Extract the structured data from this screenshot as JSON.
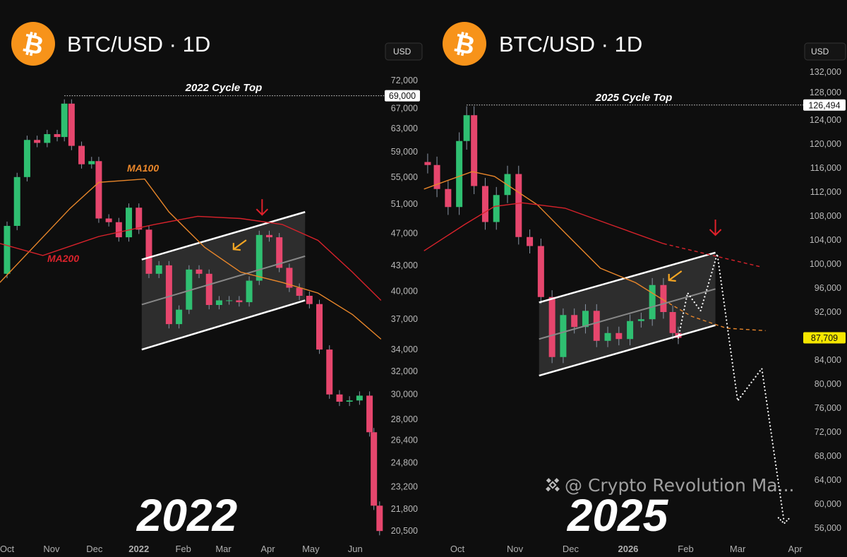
{
  "colors": {
    "background": "#0e0e0e",
    "up": "#2fbf71",
    "down": "#e6466d",
    "ma100": "#e8862a",
    "ma200": "#d8222b",
    "btc": "#f7931a",
    "arrow_red": "#e0202a",
    "arrow_orange": "#f5a623",
    "current_price_bg": "#f5e600"
  },
  "watermark": "@ Crypto Revolution Ma...",
  "chart_data": [
    {
      "type": "candlestick",
      "title": "BTC/USD · 1D",
      "icon": "bitcoin-icon",
      "currency_label": "USD",
      "year_label": "2022",
      "cycle_top_label": "2022 Cycle Top",
      "cycle_top_value": "69,000",
      "cycle_top_date": "2021-11-10",
      "y_scale": "log",
      "ylim": [
        20500,
        72000
      ],
      "y_ticks": [
        "72,000",
        "67,000",
        "63,000",
        "59,000",
        "55,000",
        "51,000",
        "47,000",
        "43,000",
        "40,000",
        "37,000",
        "34,000",
        "32,000",
        "30,000",
        "28,000",
        "26,400",
        "24,800",
        "23,200",
        "21,800",
        "20,500"
      ],
      "x_ticks": [
        {
          "date": "2021-10-01",
          "label": "Oct"
        },
        {
          "date": "2021-11-01",
          "label": "Nov"
        },
        {
          "date": "2021-12-01",
          "label": "Dec"
        },
        {
          "date": "2022-01-01",
          "label": "2022"
        },
        {
          "date": "2022-02-01",
          "label": "Feb"
        },
        {
          "date": "2022-03-01",
          "label": "Mar"
        },
        {
          "date": "2022-04-01",
          "label": "Apr"
        },
        {
          "date": "2022-05-01",
          "label": "May"
        },
        {
          "date": "2022-06-01",
          "label": "Jun"
        }
      ],
      "start_open": 42000,
      "closes": [
        [
          "2021-10-01",
          48000
        ],
        [
          "2021-10-08",
          55000
        ],
        [
          "2021-10-15",
          61000
        ],
        [
          "2021-10-22",
          60500
        ],
        [
          "2021-10-29",
          62000
        ],
        [
          "2021-11-05",
          61500
        ],
        [
          "2021-11-10",
          67500
        ],
        [
          "2021-11-15",
          60000
        ],
        [
          "2021-11-22",
          57000
        ],
        [
          "2021-11-29",
          57500
        ],
        [
          "2021-12-04",
          49000
        ],
        [
          "2021-12-11",
          48500
        ],
        [
          "2021-12-18",
          46500
        ],
        [
          "2021-12-25",
          50500
        ],
        [
          "2022-01-01",
          47500
        ],
        [
          "2022-01-08",
          42000
        ],
        [
          "2022-01-15",
          43000
        ],
        [
          "2022-01-22",
          36500
        ],
        [
          "2022-01-29",
          38000
        ],
        [
          "2022-02-05",
          42500
        ],
        [
          "2022-02-12",
          42000
        ],
        [
          "2022-02-19",
          38500
        ],
        [
          "2022-02-26",
          39000
        ],
        [
          "2022-03-05",
          39000
        ],
        [
          "2022-03-12",
          38800
        ],
        [
          "2022-03-19",
          41200
        ],
        [
          "2022-03-26",
          46800
        ],
        [
          "2022-04-02",
          46500
        ],
        [
          "2022-04-09",
          42700
        ],
        [
          "2022-04-16",
          40400
        ],
        [
          "2022-04-23",
          39500
        ],
        [
          "2022-04-30",
          38600
        ],
        [
          "2022-05-07",
          34000
        ],
        [
          "2022-05-14",
          30000
        ],
        [
          "2022-05-21",
          29400
        ],
        [
          "2022-05-28",
          29500
        ],
        [
          "2022-06-04",
          29900
        ],
        [
          "2022-06-11",
          27000
        ],
        [
          "2022-06-14",
          22000
        ],
        [
          "2022-06-18",
          20500
        ]
      ],
      "ma100": {
        "label": "MA100",
        "points": [
          [
            "2021-09-26",
            41000
          ],
          [
            "2021-11-14",
            50400
          ],
          [
            "2021-12-04",
            54200
          ],
          [
            "2022-01-05",
            54700
          ],
          [
            "2022-01-22",
            49900
          ],
          [
            "2022-02-16",
            45200
          ],
          [
            "2022-03-13",
            42200
          ],
          [
            "2022-04-11",
            41000
          ],
          [
            "2022-05-06",
            39800
          ],
          [
            "2022-05-30",
            37500
          ],
          [
            "2022-06-19",
            35000
          ]
        ]
      },
      "ma200": {
        "label": "MA200",
        "points": [
          [
            "2021-09-26",
            45700
          ],
          [
            "2021-10-26",
            44200
          ],
          [
            "2021-12-04",
            46600
          ],
          [
            "2022-01-12",
            48200
          ],
          [
            "2022-02-11",
            49300
          ],
          [
            "2022-03-13",
            49000
          ],
          [
            "2022-04-11",
            48200
          ],
          [
            "2022-05-06",
            46100
          ],
          [
            "2022-05-30",
            42200
          ],
          [
            "2022-06-19",
            39000
          ]
        ]
      },
      "channel": {
        "upper": [
          [
            "2022-01-03",
            43700
          ],
          [
            "2022-04-27",
            49900
          ]
        ],
        "lower": [
          [
            "2022-01-03",
            34000
          ],
          [
            "2022-04-27",
            39000
          ]
        ]
      },
      "annotations": [
        {
          "type": "red-down-arrow",
          "date": "2022-03-28",
          "price": 50500
        },
        {
          "type": "orange-left-arrow",
          "date": "2022-03-12",
          "price": 45500
        }
      ]
    },
    {
      "type": "candlestick",
      "title": "BTC/USD · 1D",
      "icon": "bitcoin-icon",
      "currency_label": "USD",
      "year_label": "2025",
      "cycle_top_label": "2025 Cycle Top",
      "cycle_top_value": "126,494",
      "cycle_top_date": "2025-10-06",
      "current_price": "87,709",
      "y_scale": "linear",
      "ylim": [
        56000,
        132000
      ],
      "y_ticks": [
        "132,000",
        "128,000",
        "124,000",
        "120,000",
        "116,000",
        "112,000",
        "108,000",
        "104,000",
        "100,000",
        "96,000",
        "92,000",
        "84,000",
        "80,000",
        "76,000",
        "72,000",
        "68,000",
        "64,000",
        "60,000",
        "56,000"
      ],
      "x_ticks": [
        {
          "date": "2025-10-01",
          "label": "Oct"
        },
        {
          "date": "2025-11-01",
          "label": "Nov"
        },
        {
          "date": "2025-12-01",
          "label": "Dec"
        },
        {
          "date": "2026-01-01",
          "label": "2026"
        },
        {
          "date": "2026-02-01",
          "label": "Feb"
        },
        {
          "date": "2026-03-01",
          "label": "Mar"
        },
        {
          "date": "2026-04-01",
          "label": "Apr"
        }
      ],
      "start_open": 117000,
      "closes": [
        [
          "2025-09-15",
          116500
        ],
        [
          "2025-09-20",
          112500
        ],
        [
          "2025-09-26",
          109500
        ],
        [
          "2025-10-02",
          120500
        ],
        [
          "2025-10-06",
          124800
        ],
        [
          "2025-10-10",
          113000
        ],
        [
          "2025-10-16",
          107000
        ],
        [
          "2025-10-22",
          111500
        ],
        [
          "2025-10-28",
          115000
        ],
        [
          "2025-11-03",
          104500
        ],
        [
          "2025-11-09",
          103000
        ],
        [
          "2025-11-15",
          94500
        ],
        [
          "2025-11-21",
          84500
        ],
        [
          "2025-11-27",
          91500
        ],
        [
          "2025-12-03",
          89500
        ],
        [
          "2025-12-09",
          92200
        ],
        [
          "2025-12-15",
          87200
        ],
        [
          "2025-12-21",
          88500
        ],
        [
          "2025-12-27",
          87500
        ],
        [
          "2026-01-02",
          90500
        ],
        [
          "2026-01-08",
          90800
        ],
        [
          "2026-01-14",
          96500
        ],
        [
          "2026-01-20",
          92000
        ],
        [
          "2026-01-25",
          88500
        ],
        [
          "2026-01-28",
          87709
        ]
      ],
      "ma100": {
        "points": [
          [
            "2025-09-13",
            112500
          ],
          [
            "2025-10-09",
            115400
          ],
          [
            "2025-10-21",
            114600
          ],
          [
            "2025-11-13",
            109900
          ],
          [
            "2025-11-28",
            105200
          ],
          [
            "2025-12-17",
            99300
          ],
          [
            "2026-01-05",
            96900
          ],
          [
            "2026-01-20",
            94000
          ]
        ],
        "projected": [
          [
            "2026-01-20",
            94000
          ],
          [
            "2026-02-04",
            91300
          ],
          [
            "2026-02-23",
            89300
          ],
          [
            "2026-03-16",
            88900
          ]
        ]
      },
      "ma200": {
        "points": [
          [
            "2025-09-13",
            102200
          ],
          [
            "2025-10-05",
            106600
          ],
          [
            "2025-10-21",
            109600
          ],
          [
            "2025-11-05",
            110200
          ],
          [
            "2025-11-28",
            109300
          ],
          [
            "2025-12-24",
            106400
          ],
          [
            "2026-01-20",
            103400
          ]
        ],
        "projected": [
          [
            "2026-01-20",
            103400
          ],
          [
            "2026-02-16",
            101400
          ],
          [
            "2026-03-14",
            99500
          ]
        ]
      },
      "channel": {
        "upper": [
          [
            "2025-11-14",
            93600
          ],
          [
            "2026-02-17",
            101900
          ]
        ],
        "lower": [
          [
            "2025-11-14",
            81400
          ],
          [
            "2026-02-17",
            89800
          ]
        ]
      },
      "projection": [
        [
          "2026-01-28",
          87700
        ],
        [
          "2026-02-02",
          95200
        ],
        [
          "2026-02-09",
          92200
        ],
        [
          "2026-02-18",
          101700
        ],
        [
          "2026-03-01",
          77200
        ],
        [
          "2026-03-14",
          82600
        ],
        [
          "2026-03-26",
          57000
        ]
      ],
      "annotations": [
        {
          "type": "red-down-arrow",
          "date": "2026-02-17",
          "price": 106000
        },
        {
          "type": "orange-left-arrow",
          "date": "2026-01-26",
          "price": 98000
        }
      ]
    }
  ]
}
